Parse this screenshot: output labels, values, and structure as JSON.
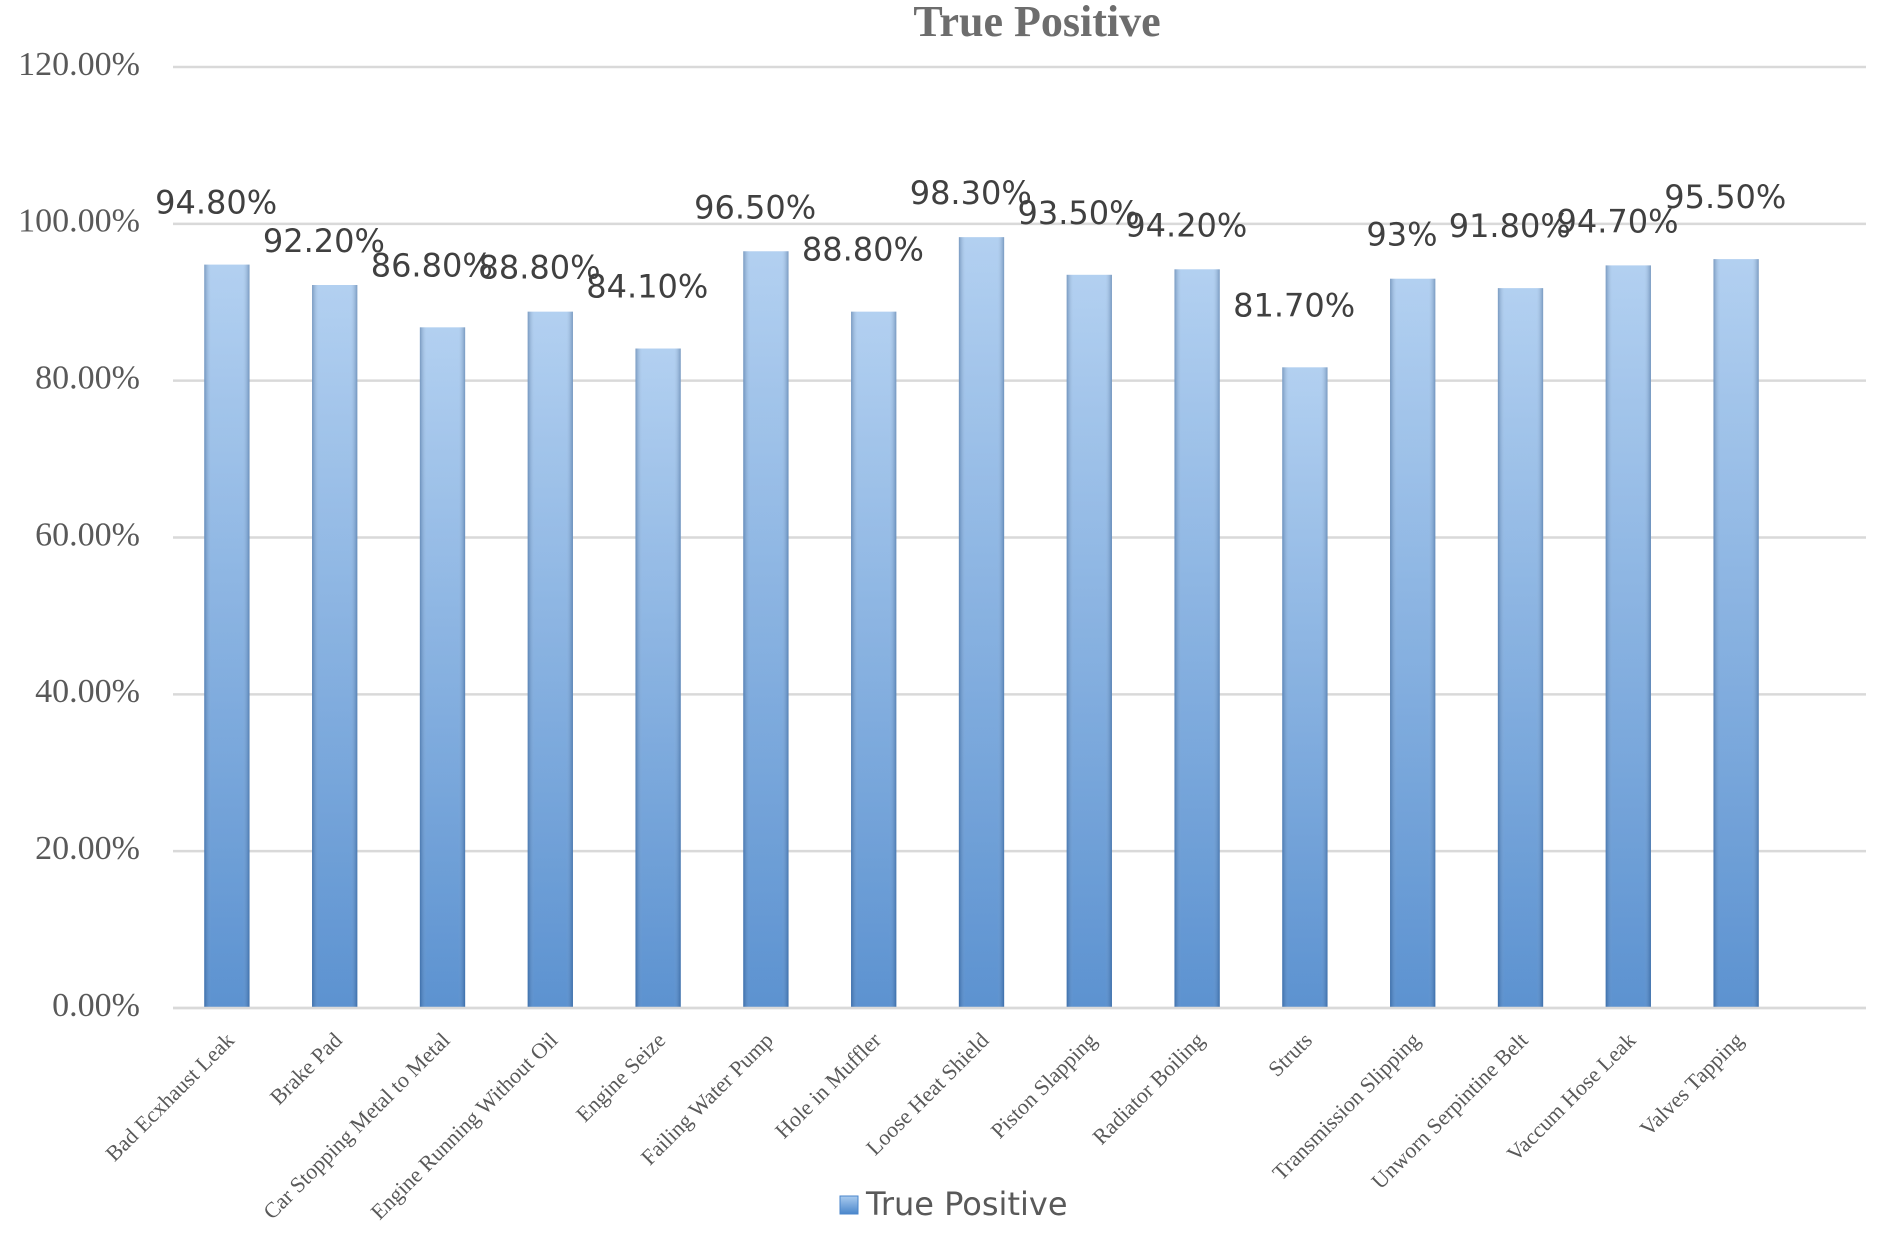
{
  "chart_data": {
    "type": "bar",
    "title": "True Positive",
    "categories": [
      "Bad Ecxhaust Leak",
      "Brake Pad",
      "Car Stopping Metal to Metal",
      "Engine Running Without Oil",
      "Engine Seize",
      "Failing Water Pump",
      "Hole in Muffler",
      "Loose Heat Shield",
      "Piston Slapping",
      "Radiator Boiling",
      "Struts",
      "Transmission Slipping",
      "Unworn Serpintine Belt",
      "Vaccum Hose Leak",
      "Valves Tapping"
    ],
    "series": [
      {
        "name": "True Positive",
        "color": "#4a86cb",
        "values": [
          94.8,
          92.2,
          86.8,
          88.8,
          84.1,
          96.5,
          88.8,
          98.3,
          93.5,
          94.2,
          81.7,
          93,
          91.8,
          94.7,
          95.5
        ],
        "value_labels": [
          "94.80%",
          "92.20%",
          "86.80%",
          "88.80%",
          "84.10%",
          "96.50%",
          "88.80%",
          "98.30%",
          "93.50%",
          "94.20%",
          "81.70%",
          "93%",
          "91.80%",
          "94.70%",
          "95.50%"
        ]
      }
    ],
    "ylim": [
      0,
      120
    ],
    "yticks": [
      {
        "value": 0,
        "label": "0.00%"
      },
      {
        "value": 20,
        "label": "20.00%"
      },
      {
        "value": 40,
        "label": "40.00%"
      },
      {
        "value": 60,
        "label": "60.00%"
      },
      {
        "value": 80,
        "label": "80.00%"
      },
      {
        "value": 100,
        "label": "100.00%"
      },
      {
        "value": 120,
        "label": "120.00%"
      }
    ],
    "grid": true,
    "legend": "bottom"
  }
}
